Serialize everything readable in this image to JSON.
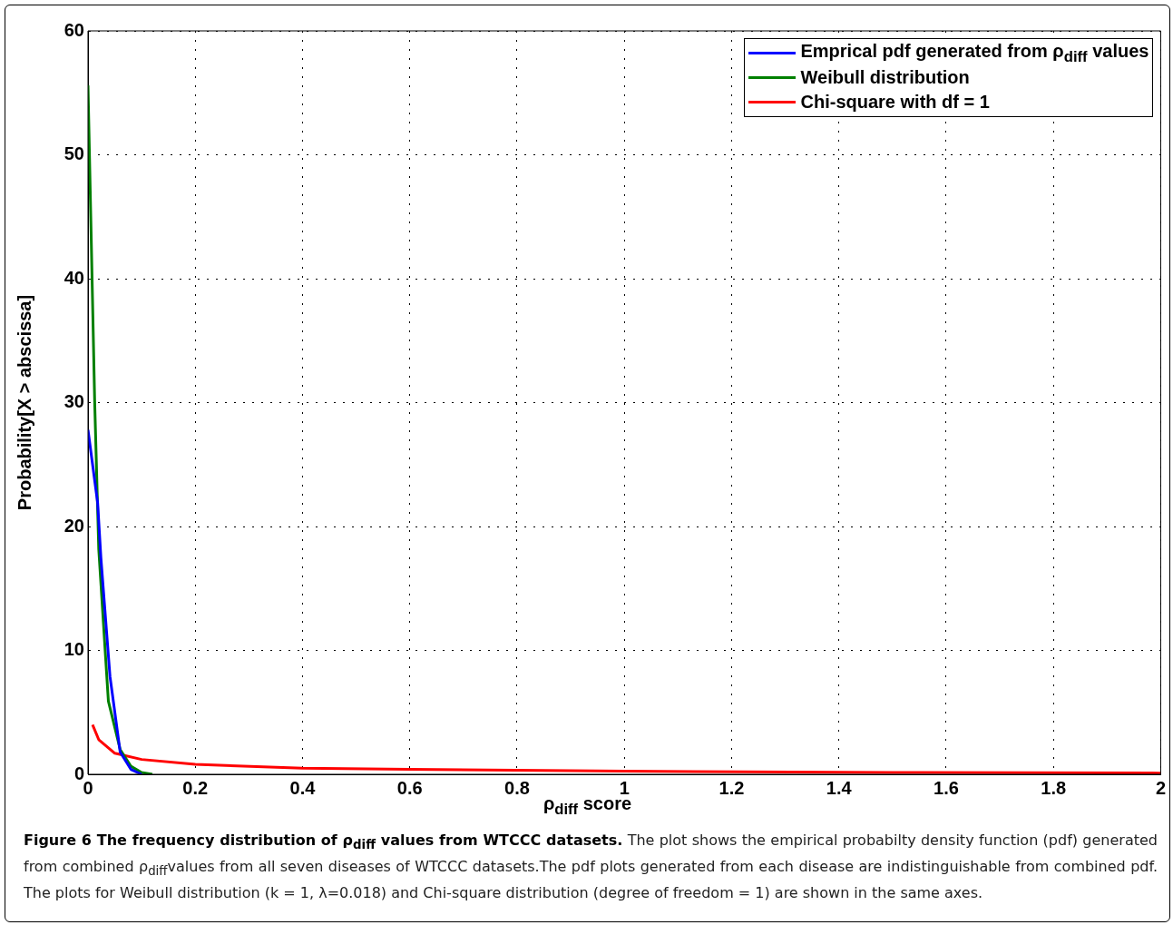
{
  "chart_data": {
    "type": "line",
    "xlabel": "ρ$_{diff}$ score",
    "ylabel": "Probability[X > abscissa]",
    "xlim": [
      0,
      2
    ],
    "xticks": [
      0,
      0.2,
      0.4,
      0.6,
      0.8,
      1,
      1.2,
      1.4,
      1.6,
      1.8,
      2
    ],
    "ylim": [
      0,
      60
    ],
    "yticks": [
      0,
      10,
      20,
      30,
      40,
      50,
      60
    ],
    "grid": true,
    "legend": "top right",
    "marker": "none",
    "line_style": "solid",
    "series": [
      {
        "name": "Emprical pdf generated from ρ$_{diff}$ values",
        "color": "#0000ff",
        "x": [
          0,
          0.018,
          0.024,
          0.041,
          0.06,
          0.08,
          0.1
        ],
        "values": [
          27.8,
          21.9,
          17.5,
          7.9,
          1.8,
          0.4,
          0
        ]
      },
      {
        "name": "Weibull distribution",
        "color": "#008000",
        "x": [
          0,
          0.0125,
          0.02,
          0.038,
          0.06,
          0.08,
          0.1,
          0.12
        ],
        "values": [
          55.6,
          30,
          18.2,
          5.9,
          2,
          0.65,
          0.15,
          0
        ]
      },
      {
        "name": "Chi-square with df = 1",
        "color": "#ff0000",
        "x": [
          0.0085,
          0.02,
          0.05,
          0.1,
          0.2,
          0.4,
          0.6,
          1,
          1.5,
          2
        ],
        "values": [
          4,
          2.8,
          1.7,
          1.2,
          0.8,
          0.5,
          0.4,
          0.25,
          0.15,
          0.1
        ]
      }
    ],
    "annotations": [
      "Figure 6 The frequency distribution of ρ$_{diff}$ values from WTCCC datasets.",
      "The plot shows the empirical probabilty density function (pdf) generated from combined ρ$_{diff}$values from all seven diseases of WTCCC datasets.The pdf plots generated from each disease are indistinguishable from combined pdf. The plots for Weibull distribution (k = 1, λ=0.018) and Chi-square distribution (degree of freedom = 1) are shown in the same axes."
    ]
  }
}
